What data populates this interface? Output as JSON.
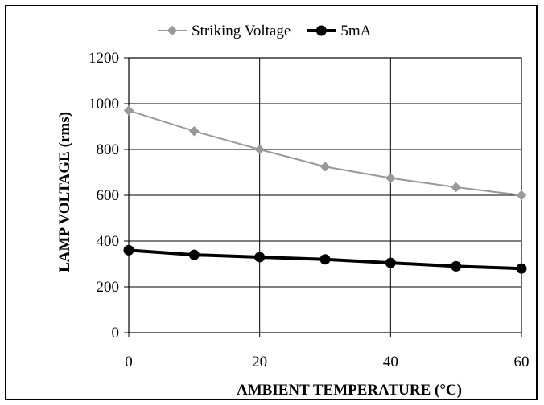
{
  "chart_data": {
    "type": "line",
    "title": "",
    "xlabel": "AMBIENT TEMPERATURE (°C)",
    "ylabel": "LAMP VOLTAGE (rms)",
    "x": [
      0,
      10,
      20,
      30,
      40,
      50,
      60
    ],
    "xlim": [
      0,
      60
    ],
    "ylim": [
      0,
      1200
    ],
    "xticks": [
      0,
      20,
      40,
      60
    ],
    "yticks": [
      0,
      200,
      400,
      600,
      800,
      1000,
      1200
    ],
    "grid": "major x and y",
    "legend_position": "top",
    "series": [
      {
        "name": "Striking Voltage",
        "values": [
          970,
          880,
          800,
          725,
          675,
          635,
          600
        ],
        "color": "#999999",
        "marker": "diamond"
      },
      {
        "name": "5mA",
        "values": [
          360,
          340,
          330,
          320,
          305,
          290,
          280
        ],
        "color": "#000000",
        "marker": "circle"
      }
    ]
  }
}
